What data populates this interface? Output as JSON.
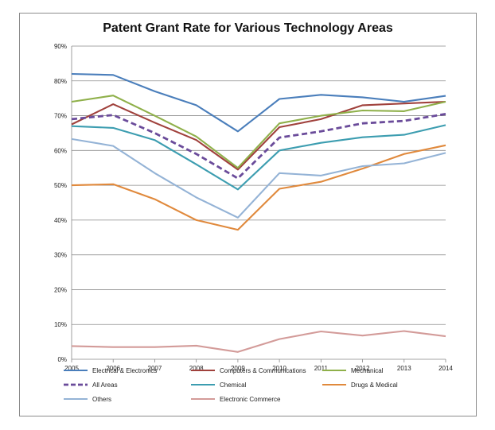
{
  "chart_data": {
    "type": "line",
    "title": "Patent Grant Rate for Various Technology Areas",
    "xlabel": "",
    "ylabel": "",
    "x": [
      "2005",
      "2006",
      "2007",
      "2008",
      "2009",
      "2010",
      "2011",
      "2012",
      "2013",
      "2014"
    ],
    "ylim": [
      0,
      90
    ],
    "yticks": [
      "0%",
      "10%",
      "20%",
      "30%",
      "40%",
      "50%",
      "60%",
      "70%",
      "80%",
      "90%"
    ],
    "grid": true,
    "legend_position": "bottom",
    "series": [
      {
        "name": "Electrical & Electronics",
        "color": "#4a7ebb",
        "dashed": false,
        "values": [
          82,
          81.7,
          77,
          73,
          65.5,
          74.8,
          76,
          75.3,
          74,
          75.7
        ]
      },
      {
        "name": "Computers & Communications",
        "color": "#a0413c",
        "dashed": false,
        "values": [
          67.5,
          73.3,
          68,
          63,
          54.5,
          66.7,
          69,
          73,
          73.5,
          74
        ]
      },
      {
        "name": "Mechanical",
        "color": "#8fb04a",
        "dashed": false,
        "values": [
          74,
          75.8,
          70,
          64,
          55,
          67.8,
          70,
          71.5,
          71.3,
          74
        ]
      },
      {
        "name": "All Areas",
        "color": "#6a4b9a",
        "dashed": true,
        "values": [
          69,
          70.2,
          65,
          59,
          52,
          63.7,
          65.5,
          67.8,
          68.5,
          70.5
        ]
      },
      {
        "name": "Chemical",
        "color": "#3c9db0",
        "dashed": false,
        "values": [
          67,
          66.5,
          63,
          56,
          48.8,
          60,
          62.2,
          63.8,
          64.5,
          67.3
        ]
      },
      {
        "name": "Drugs & Medical",
        "color": "#e0893c",
        "dashed": false,
        "values": [
          50,
          50.3,
          46,
          40,
          37.2,
          49,
          51,
          54.8,
          59,
          61.5
        ]
      },
      {
        "name": "Others",
        "color": "#94b3d6",
        "dashed": false,
        "values": [
          63.3,
          61.3,
          53.5,
          46.5,
          40.7,
          53.5,
          52.8,
          55.5,
          56.3,
          59.3
        ]
      },
      {
        "name": "Electronic Commerce",
        "color": "#d39b99",
        "dashed": false,
        "values": [
          3.8,
          3.5,
          3.5,
          3.9,
          2.1,
          5.8,
          8,
          6.8,
          8.1,
          6.6
        ]
      }
    ]
  }
}
